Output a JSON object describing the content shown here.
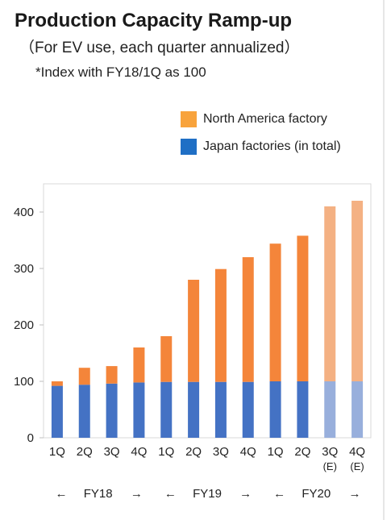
{
  "chart_data": {
    "type": "bar",
    "stacked": true,
    "title": "Production Capacity Ramp-up",
    "subtitle": "（For EV use, each quarter annualized）",
    "note": "*Index with FY18/1Q as 100",
    "categories": [
      "1Q",
      "2Q",
      "3Q",
      "4Q",
      "1Q",
      "2Q",
      "3Q",
      "4Q",
      "1Q",
      "2Q",
      "3Q",
      "4Q"
    ],
    "category_sublabels": [
      "",
      "",
      "",
      "",
      "",
      "",
      "",
      "",
      "",
      "",
      "(E)",
      "(E)"
    ],
    "estimated": [
      false,
      false,
      false,
      false,
      false,
      false,
      false,
      false,
      false,
      false,
      true,
      true
    ],
    "series": [
      {
        "name": "Japan factories (in total)",
        "color": "#4472c4",
        "estimate_color": "#98afdc",
        "values": [
          92,
          94,
          96,
          98,
          99,
          99,
          99,
          99,
          100,
          100,
          100,
          100
        ]
      },
      {
        "name": "North America factory",
        "color": "#f4853a",
        "estimate_color": "#f4b183",
        "values": [
          8,
          30,
          31,
          62,
          81,
          181,
          200,
          221,
          244,
          258,
          310,
          320
        ]
      }
    ],
    "ylim": [
      0,
      450
    ],
    "yticks": [
      0,
      100,
      200,
      300,
      400
    ],
    "xlabel": "",
    "ylabel": "",
    "periods": [
      {
        "label": "FY18",
        "left_arrow": "←",
        "right_arrow": "→"
      },
      {
        "label": "FY19",
        "left_arrow": "←",
        "right_arrow": "→"
      },
      {
        "label": "FY20",
        "left_arrow": "←",
        "right_arrow": "→"
      }
    ],
    "legend_placement": "top-right",
    "grid": false
  }
}
